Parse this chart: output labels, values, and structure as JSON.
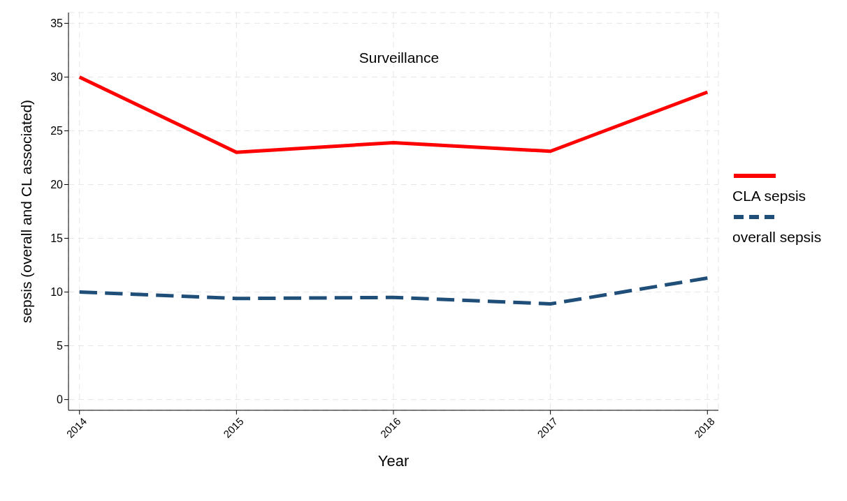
{
  "chart_data": {
    "type": "line",
    "title": "Surveillance",
    "xlabel": "Year",
    "ylabel": "sepsis (overall and CL associated)",
    "x": [
      2014,
      2015,
      2016,
      2017,
      2018
    ],
    "series": [
      {
        "name": "CLA sepsis",
        "color": "#ff0000",
        "line_style": "solid",
        "values": [
          30,
          23,
          23.9,
          23.1,
          28.6
        ]
      },
      {
        "name": "overall sepsis",
        "color": "#1f4e79",
        "line_style": "dashed",
        "values": [
          10,
          9.4,
          9.5,
          8.9,
          11.3
        ]
      }
    ],
    "xlim": [
      2013.93,
      2018.07
    ],
    "xticks": [
      2014,
      2015,
      2016,
      2017,
      2018
    ],
    "ylim": [
      -1,
      36
    ],
    "yticks": [
      0,
      5,
      10,
      15,
      20,
      25,
      30,
      35
    ],
    "grid": true,
    "legend": "right",
    "marker": "none"
  }
}
